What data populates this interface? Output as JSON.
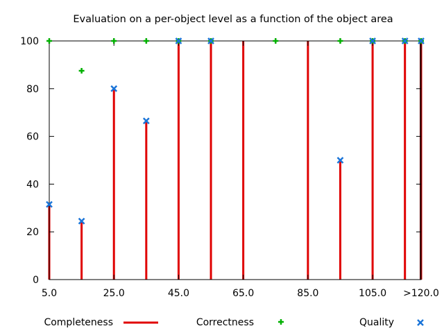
{
  "chart_data": {
    "type": "bar",
    "title": "Evaluation on a per-object level as a function of the object area",
    "xlabel": "",
    "ylabel": "",
    "x_range": [
      5,
      120
    ],
    "ylim": [
      0,
      100
    ],
    "x_tick_labels": [
      {
        "x": 5,
        "label": "5.0"
      },
      {
        "x": 25,
        "label": "25.0"
      },
      {
        "x": 45,
        "label": "45.0"
      },
      {
        "x": 65,
        "label": "65.0"
      },
      {
        "x": 85,
        "label": "85.0"
      },
      {
        "x": 105,
        "label": "105.0"
      },
      {
        "x": 120,
        "label": ">120.0"
      }
    ],
    "y_ticks": [
      0,
      20,
      40,
      60,
      80,
      100
    ],
    "grid": false,
    "legend_position": "bottom",
    "series": [
      {
        "name": "Completeness",
        "type": "bar",
        "color": "#e00000",
        "points": [
          {
            "x": 5,
            "y": 31.5
          },
          {
            "x": 15,
            "y": 24.5
          },
          {
            "x": 25,
            "y": 80
          },
          {
            "x": 35,
            "y": 66.5
          },
          {
            "x": 45,
            "y": 100
          },
          {
            "x": 55,
            "y": 100
          },
          {
            "x": 65,
            "y": 100
          },
          {
            "x": 85,
            "y": 100
          },
          {
            "x": 95,
            "y": 50
          },
          {
            "x": 105,
            "y": 100
          },
          {
            "x": 115,
            "y": 100
          },
          {
            "x": 120,
            "y": 100
          }
        ]
      },
      {
        "name": "Correctness",
        "type": "scatter",
        "marker": "plus",
        "color": "#00b000",
        "points": [
          {
            "x": 5,
            "y": 100
          },
          {
            "x": 15,
            "y": 87.5
          },
          {
            "x": 25,
            "y": 100
          },
          {
            "x": 35,
            "y": 100
          },
          {
            "x": 45,
            "y": 100
          },
          {
            "x": 55,
            "y": 100
          },
          {
            "x": 75,
            "y": 100
          },
          {
            "x": 95,
            "y": 100
          },
          {
            "x": 105,
            "y": 100
          },
          {
            "x": 115,
            "y": 100
          },
          {
            "x": 120,
            "y": 100
          }
        ]
      },
      {
        "name": "Quality",
        "type": "scatter",
        "marker": "cross",
        "color": "#1a74d8",
        "points": [
          {
            "x": 5,
            "y": 31.5
          },
          {
            "x": 15,
            "y": 24.5
          },
          {
            "x": 25,
            "y": 80
          },
          {
            "x": 35,
            "y": 66.5
          },
          {
            "x": 45,
            "y": 100
          },
          {
            "x": 55,
            "y": 100
          },
          {
            "x": 95,
            "y": 50
          },
          {
            "x": 105,
            "y": 100
          },
          {
            "x": 115,
            "y": 100
          },
          {
            "x": 120,
            "y": 100
          }
        ]
      }
    ]
  }
}
